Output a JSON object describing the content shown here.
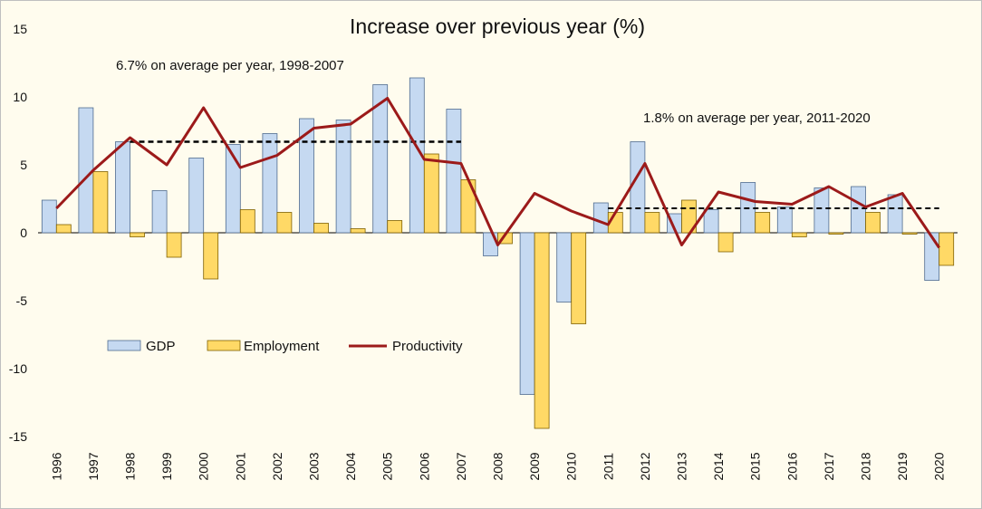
{
  "chart_data": {
    "type": "bar",
    "title": "Increase over previous year (%)",
    "xlabel": "",
    "ylabel": "",
    "ylim": [
      -15,
      15
    ],
    "yticks": [
      -15,
      -10,
      -5,
      0,
      5,
      10,
      15
    ],
    "grid": false,
    "legend_position": "lower-left",
    "categories": [
      "1996",
      "1997",
      "1998",
      "1999",
      "2000",
      "2001",
      "2002",
      "2003",
      "2004",
      "2005",
      "2006",
      "2007",
      "2008",
      "2009",
      "2010",
      "2011",
      "2012",
      "2013",
      "2014",
      "2015",
      "2016",
      "2017",
      "2018",
      "2019",
      "2020"
    ],
    "series": [
      {
        "name": "GDP",
        "kind": "bar",
        "color": "#c5d9f1",
        "edge": "#4f6b8f",
        "values": [
          2.4,
          9.2,
          6.7,
          3.1,
          5.5,
          6.5,
          7.3,
          8.4,
          8.3,
          10.9,
          11.4,
          9.1,
          -1.7,
          -11.9,
          -5.1,
          2.2,
          6.7,
          1.4,
          1.7,
          3.7,
          1.9,
          3.3,
          3.4,
          2.8,
          -3.5
        ]
      },
      {
        "name": "Employment",
        "kind": "bar",
        "color": "#ffd966",
        "edge": "#7f6000",
        "values": [
          0.6,
          4.5,
          -0.3,
          -1.8,
          -3.4,
          1.7,
          1.5,
          0.7,
          0.3,
          0.9,
          5.8,
          3.9,
          -0.8,
          -14.4,
          -6.7,
          1.5,
          1.5,
          2.4,
          -1.4,
          1.5,
          -0.3,
          -0.1,
          1.5,
          -0.1,
          -2.4
        ]
      },
      {
        "name": "Productivity",
        "kind": "line",
        "color": "#9c1a1a",
        "values": [
          1.8,
          4.6,
          7.0,
          5.0,
          9.2,
          4.8,
          5.7,
          7.7,
          8.0,
          9.9,
          5.4,
          5.1,
          -0.9,
          2.9,
          1.6,
          0.6,
          5.1,
          -0.9,
          3.0,
          2.3,
          2.1,
          3.4,
          1.9,
          2.9,
          -1.1
        ]
      }
    ],
    "annotations": [
      {
        "text": "6.7% on average per year, 1998-2007",
        "avg_value": 6.7,
        "from": "1998",
        "to": "2007"
      },
      {
        "text": "1.8% on average per year, 2011-2020",
        "avg_value": 1.8,
        "from": "2011",
        "to": "2020"
      }
    ]
  }
}
